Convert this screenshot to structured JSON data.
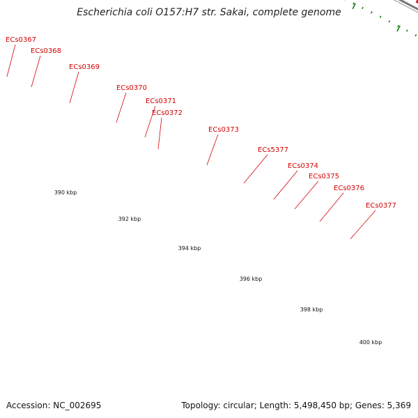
{
  "header": {
    "title": "Escherichia coli O157:H7 str. Sakai, complete genome"
  },
  "footer": {
    "accession": "Accession: NC_002695",
    "summary": "Topology: circular; Length: 5,498,450 bp; Genes: 5,369"
  },
  "colors": {
    "forward_cds": "#ff0000",
    "reverse_cds_cyan": "#1fe3e3",
    "reverse_cds_teal": "#17c2c2",
    "reverse_cds_blue": "#3a6fa8",
    "reverse_cds_lightblue": "#1ab8e8",
    "other_feature_gray": "#c4c4c4",
    "dark_feature": "#444444",
    "backbone": "#777777",
    "ticks": "#0a7a0a",
    "gene_label": "#d40000"
  },
  "map": {
    "gene_labels": [
      "ECs0367",
      "ECs0368",
      "ECs0369",
      "ECs0370",
      "ECs0371",
      "ECs0372",
      "ECs0373",
      "ECs5377",
      "ECs0374",
      "ECs0375",
      "ECs0376",
      "ECs0377"
    ],
    "kbp_labels": [
      "390 kbp",
      "392 kbp",
      "394 kbp",
      "396 kbp",
      "398 kbp",
      "400 kbp"
    ]
  }
}
